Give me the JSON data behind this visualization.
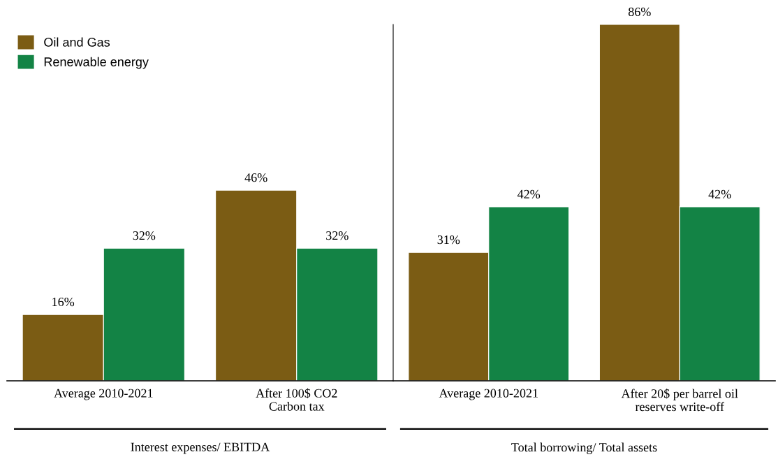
{
  "chart_data": [
    {
      "type": "bar",
      "xlabel": "Interest expenses/ EBITDA",
      "categories": [
        "Average 2010-2021",
        "After 100$ CO2\nCarbon tax"
      ],
      "legend": "top left",
      "series": [
        {
          "name": "Oil and Gas",
          "color": "#7b5c14",
          "values": [
            16,
            46
          ],
          "value_labels": [
            "16%",
            "46%"
          ]
        },
        {
          "name": "Renewable energy",
          "color": "#138345",
          "values": [
            32,
            32
          ],
          "value_labels": [
            "32%",
            "32%"
          ]
        }
      ]
    },
    {
      "type": "bar",
      "xlabel": "Total borrowing/ Total assets",
      "categories": [
        "Average 2010-2021",
        "After 20$ per barrel oil\nreserves write-off"
      ],
      "series": [
        {
          "color": "#7b5c14",
          "values": [
            31,
            86
          ],
          "value_labels": [
            "31%",
            "86%"
          ]
        },
        {
          "color": "#138345",
          "values": [
            42,
            42
          ],
          "value_labels": [
            "42%",
            "42%"
          ]
        }
      ]
    }
  ]
}
